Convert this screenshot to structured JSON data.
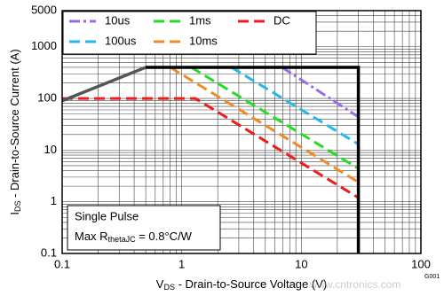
{
  "chart_data": {
    "type": "line",
    "x_label": [
      "V",
      "DS",
      " - Drain-to-Source Voltage (V)"
    ],
    "y_label": [
      "I",
      "DS",
      " - Drain-to-Source Current (A)"
    ],
    "annotations": {
      "line1": "Single Pulse",
      "line2": [
        "Max R",
        "thetaJC",
        " = 0.8°C/W"
      ]
    },
    "figure_id": "G001",
    "watermark": "www.cntronics.com",
    "log_x": true,
    "log_y": true,
    "grid": true,
    "xlim": [
      0.1,
      100
    ],
    "ylim": [
      0.1,
      5000
    ],
    "xticks": [
      0.1,
      1,
      10,
      100
    ],
    "yticks": [
      0.1,
      1,
      10,
      100,
      1000,
      5000
    ],
    "minor_xticks": [
      0.2,
      0.3,
      0.4,
      0.5,
      0.6,
      0.7,
      0.8,
      0.9,
      2,
      3,
      4,
      5,
      6,
      7,
      8,
      9,
      20,
      30,
      40,
      50,
      60,
      70,
      80,
      90
    ],
    "minor_yticks": [
      0.2,
      0.3,
      0.4,
      0.5,
      0.6,
      0.7,
      0.8,
      0.9,
      2,
      3,
      4,
      5,
      6,
      7,
      8,
      9,
      20,
      30,
      40,
      50,
      60,
      70,
      80,
      90,
      200,
      300,
      400,
      500,
      600,
      700,
      800,
      900,
      2000,
      3000,
      4000
    ],
    "series": [
      {
        "name": "10us",
        "color": "#9a6be8",
        "dash": "dash-dot",
        "x": [
          6.9,
          30
        ],
        "values": [
          400,
          44
        ]
      },
      {
        "name": "100us",
        "color": "#22b8ec",
        "dash": "dash",
        "x": [
          2.6,
          30
        ],
        "values": [
          400,
          13
        ]
      },
      {
        "name": "1ms",
        "color": "#22dd22",
        "dash": "dash",
        "x": [
          1.2,
          30
        ],
        "values": [
          400,
          4.4
        ]
      },
      {
        "name": "10ms",
        "color": "#f08a24",
        "dash": "dash",
        "x": [
          0.8,
          30
        ],
        "values": [
          400,
          2.4
        ]
      },
      {
        "name": "DC",
        "color": "#ee1c1c",
        "dash": "dash",
        "x": [
          0.1,
          1.3,
          30
        ],
        "values": [
          100,
          100,
          1.2
        ]
      },
      {
        "color": "#555555",
        "dash": "solid",
        "x": [
          0.1,
          0.5
        ],
        "values": [
          90,
          400
        ]
      },
      {
        "color": "#000000",
        "dash": "solid",
        "x": [
          0.5,
          30,
          30
        ],
        "values": [
          400,
          400,
          0.1
        ]
      }
    ]
  }
}
